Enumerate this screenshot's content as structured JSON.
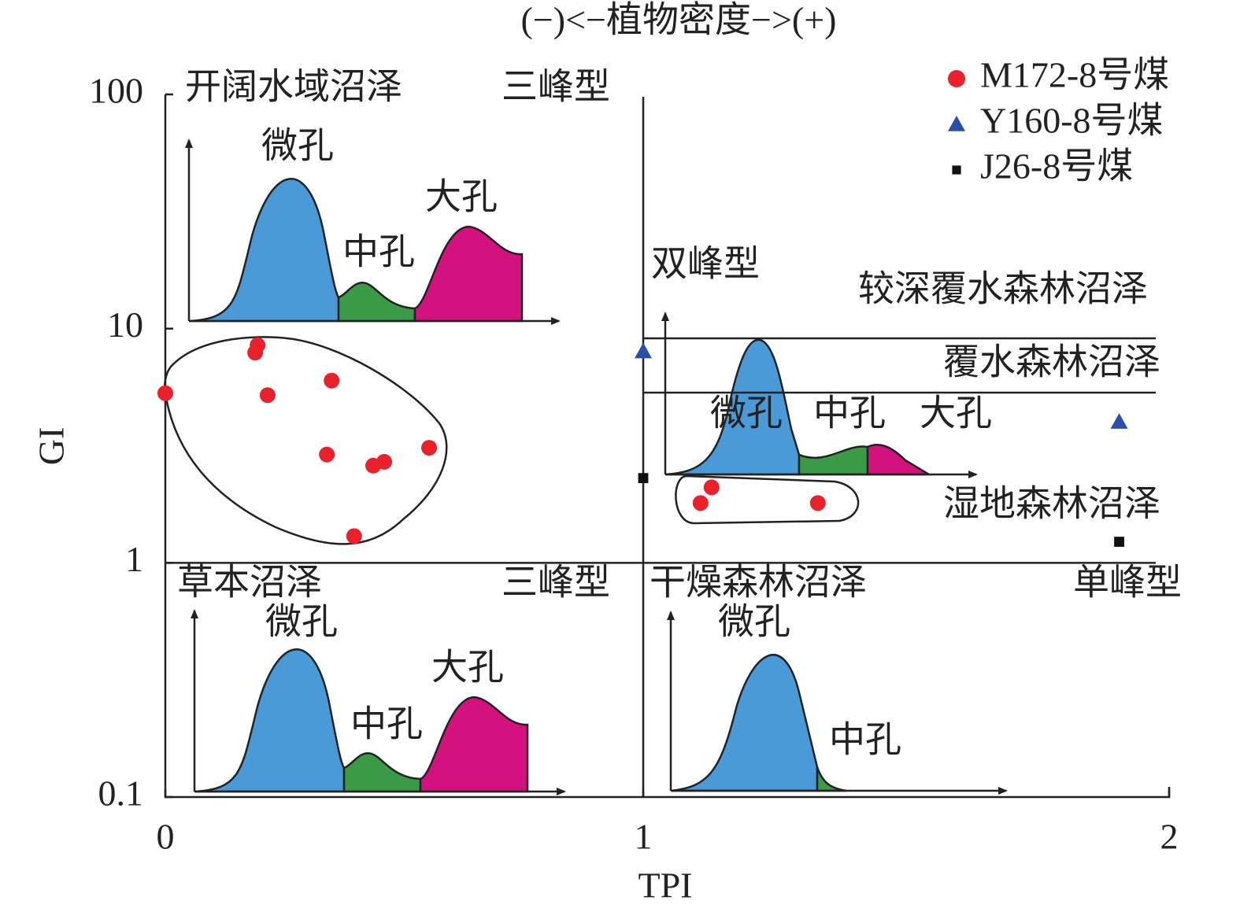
{
  "chart_data": {
    "type": "scatter",
    "title": "(−)<−植物密度−>(+)",
    "x_label": "TPI",
    "y_label": "GI",
    "xlim": [
      0,
      2
    ],
    "xticks": [
      0,
      1,
      2
    ],
    "ylim": [
      0.1,
      100
    ],
    "yticks": [
      0.1,
      1,
      10,
      100
    ],
    "y_scale": "log",
    "legend": "upper right",
    "series": [
      {
        "name": "M172-8号煤",
        "color": "#e8212a",
        "marker": "circle",
        "x": [
          0,
          0.193,
          0.188,
          0.214,
          0.348,
          0.338,
          0.435,
          0.458,
          0.552,
          0.395,
          1.109,
          1.13,
          1.332
        ],
        "values": [
          5.3,
          8.5,
          7.9,
          5.2,
          6.0,
          2.9,
          2.6,
          2.7,
          3.1,
          1.3,
          1.8,
          2.1,
          1.8
        ]
      },
      {
        "name": "Y160-8号煤",
        "color": "#2b4ea6",
        "marker": "triangle",
        "x": [
          1.0,
          1.905
        ],
        "values": [
          8.0,
          4.0
        ]
      },
      {
        "name": "J26-8号煤",
        "color": "#111111",
        "marker": "square",
        "x": [
          1.0,
          1.905
        ],
        "values": [
          2.3,
          1.23
        ]
      }
    ],
    "annotations": [
      "开阔水域沼泽",
      "三峰型",
      "草本沼泽",
      "三峰型",
      "双峰型",
      "较深覆水森林沼泽",
      "覆水森林沼泽",
      "湿地森林沼泽",
      "干燥森林沼泽",
      "单峰型",
      "微孔",
      "中孔",
      "大孔",
      "微孔",
      "中孔",
      "大孔",
      "微孔",
      "中孔",
      "大孔",
      "微孔",
      "中孔"
    ]
  }
}
